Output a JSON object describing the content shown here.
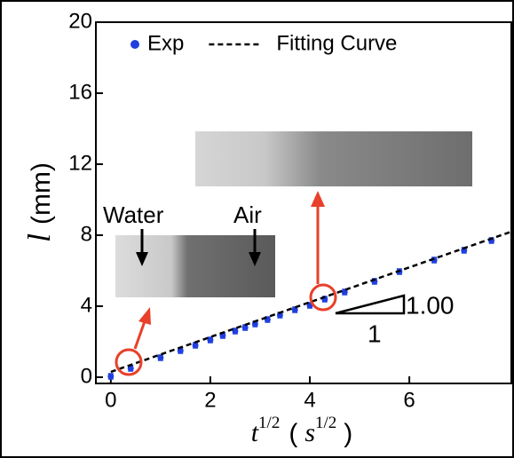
{
  "chart_data": {
    "type": "scatter",
    "xlabel": [
      "t",
      "1/2",
      "(",
      "s",
      "1/2",
      ")"
    ],
    "ylabel": [
      "l",
      "(mm)"
    ],
    "xlim": [
      -0.3,
      8.05
    ],
    "ylim": [
      -0.35,
      20
    ],
    "xticks": [
      0,
      2,
      4,
      6
    ],
    "yticks": [
      0,
      4,
      8,
      12,
      16,
      20
    ],
    "legend": "top",
    "series": [
      {
        "name": "Exp",
        "color": "#1f3fe0",
        "x": [
          0,
          0.4,
          1.0,
          1.4,
          1.7,
          2.0,
          2.25,
          2.5,
          2.7,
          2.9,
          3.15,
          3.4,
          3.7,
          4.0,
          4.3,
          4.7,
          5.3,
          5.8,
          6.5,
          7.1,
          7.65
        ],
        "values": [
          0.05,
          0.5,
          1.1,
          1.5,
          1.8,
          2.1,
          2.35,
          2.6,
          2.8,
          3.0,
          3.25,
          3.5,
          3.8,
          4.05,
          4.4,
          4.8,
          5.4,
          5.95,
          6.6,
          7.15,
          7.7
        ],
        "errors": [
          0.15,
          0.15,
          0.15,
          0.15,
          0.15,
          0.15,
          0.15,
          0.15,
          0.15,
          0.15,
          0.15,
          0.15,
          0.15,
          0.15,
          0.15,
          0.15,
          0.15,
          0.15,
          0.15,
          0.15,
          0.15
        ]
      },
      {
        "name": "Fitting Curve",
        "color": "#000000",
        "style": "dashed",
        "x": [
          0,
          8.05
        ],
        "values": [
          0.3,
          8.2
        ]
      }
    ],
    "annotations": [
      "Water",
      "Air",
      "1.00",
      "1"
    ]
  }
}
